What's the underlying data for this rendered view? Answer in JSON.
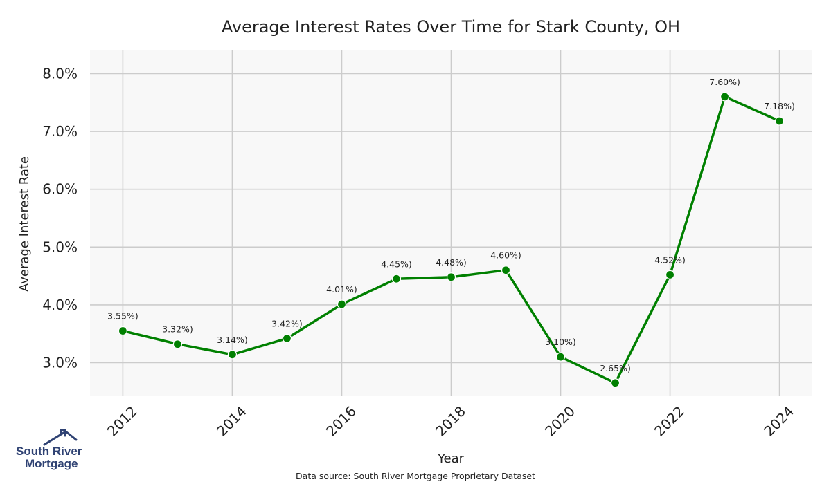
{
  "chart_data": {
    "type": "line",
    "title": "Average Interest Rates Over Time for Stark County, OH",
    "xlabel": "Year",
    "ylabel": "Average Interest Rate",
    "x": [
      2012,
      2013,
      2014,
      2015,
      2016,
      2017,
      2018,
      2019,
      2020,
      2021,
      2022,
      2023,
      2024
    ],
    "series": [
      {
        "values": [
          3.55,
          3.32,
          3.14,
          3.42,
          4.01,
          4.45,
          4.48,
          4.6,
          3.1,
          2.65,
          4.52,
          7.6,
          7.18
        ],
        "labels": [
          "3.55%)",
          "3.32%)",
          "3.14%)",
          "3.42%)",
          "4.01%)",
          "4.45%)",
          "4.48%)",
          "4.60%)",
          "3.10%)",
          "2.65%)",
          "4.52%)",
          "7.60%)",
          "7.18%)"
        ],
        "color": "#008000"
      }
    ],
    "xticks": [
      "2012",
      "2014",
      "2016",
      "2018",
      "2020",
      "2022",
      "2024"
    ],
    "yticks": [
      "3.0%",
      "4.0%",
      "5.0%",
      "6.0%",
      "7.0%",
      "8.0%"
    ],
    "ytick_values": [
      3.0,
      4.0,
      5.0,
      6.0,
      7.0,
      8.0
    ],
    "xlim": [
      2011.4,
      2024.6
    ],
    "ylim": [
      2.42,
      8.4
    ],
    "grid": true,
    "plot_background": "#f8f8f8",
    "grid_color": "#cccccc"
  },
  "source_note": "Data source: South River Mortgage Proprietary Dataset",
  "logo": {
    "line1": "South River",
    "line2": "Mortgage",
    "color": "#2f4273",
    "icon": "house-roof-icon"
  }
}
